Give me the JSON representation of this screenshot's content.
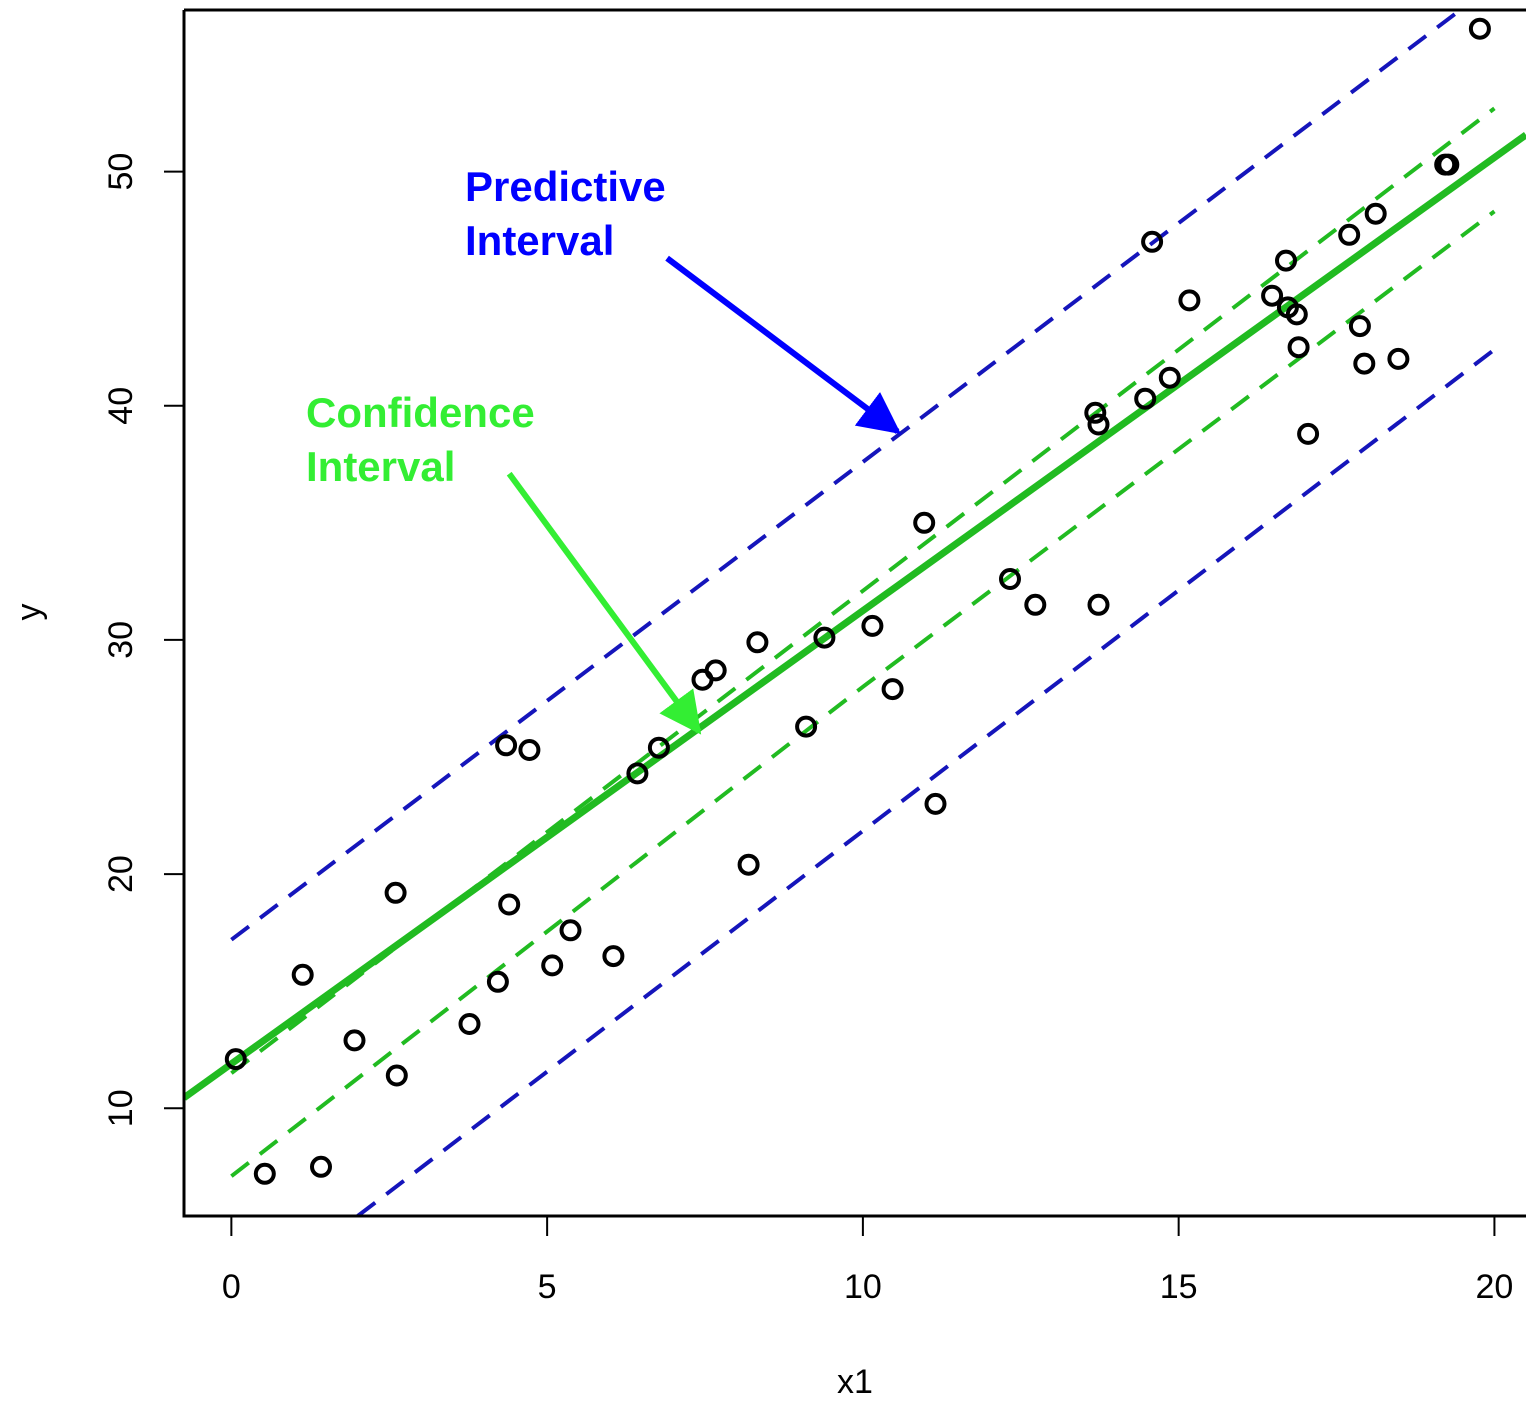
{
  "chart_data": {
    "type": "scatter",
    "title": "",
    "xlabel": "x1",
    "ylabel": "y",
    "xlim": [
      -0.75,
      20.5
    ],
    "ylim": [
      5.4,
      56.9
    ],
    "x_ticks": [
      0,
      5,
      10,
      15,
      20
    ],
    "y_ticks": [
      10,
      20,
      30,
      40,
      50
    ],
    "grid": false,
    "points": [
      [
        0.07,
        12.1
      ],
      [
        0.53,
        7.2
      ],
      [
        1.13,
        15.7
      ],
      [
        1.42,
        7.5
      ],
      [
        1.95,
        12.9
      ],
      [
        2.6,
        19.2
      ],
      [
        2.62,
        11.4
      ],
      [
        3.77,
        13.6
      ],
      [
        4.22,
        15.4
      ],
      [
        4.35,
        25.5
      ],
      [
        4.4,
        18.7
      ],
      [
        4.72,
        25.3
      ],
      [
        5.08,
        16.1
      ],
      [
        5.37,
        17.6
      ],
      [
        6.05,
        16.5
      ],
      [
        6.43,
        24.3
      ],
      [
        6.77,
        25.4
      ],
      [
        7.46,
        28.3
      ],
      [
        7.67,
        28.7
      ],
      [
        8.19,
        20.4
      ],
      [
        8.33,
        29.9
      ],
      [
        9.1,
        26.3
      ],
      [
        9.39,
        30.1
      ],
      [
        10.15,
        30.6
      ],
      [
        10.47,
        27.9
      ],
      [
        10.97,
        35.0
      ],
      [
        11.15,
        23.0
      ],
      [
        12.33,
        32.6
      ],
      [
        12.73,
        31.5
      ],
      [
        13.68,
        39.7
      ],
      [
        13.73,
        39.2
      ],
      [
        13.73,
        31.5
      ],
      [
        14.47,
        40.3
      ],
      [
        14.58,
        47.0
      ],
      [
        14.86,
        41.2
      ],
      [
        15.17,
        44.5
      ],
      [
        16.48,
        44.7
      ],
      [
        16.7,
        46.2
      ],
      [
        16.73,
        44.2
      ],
      [
        16.87,
        43.9
      ],
      [
        16.9,
        42.5
      ],
      [
        17.05,
        38.8
      ],
      [
        17.7,
        47.3
      ],
      [
        17.87,
        43.4
      ],
      [
        17.94,
        41.8
      ],
      [
        18.12,
        48.2
      ],
      [
        18.48,
        42.0
      ],
      [
        19.22,
        50.3
      ],
      [
        19.27,
        50.3
      ],
      [
        19.77,
        56.1
      ]
    ],
    "fit_line": {
      "intercept": 11.9,
      "slope": 1.935,
      "color": "#21bb21"
    },
    "confidence_interval": {
      "color": "#21bb21",
      "style": "dashed",
      "upper": [
        [
          0.0,
          11.5
        ],
        [
          10.0,
          32.1
        ],
        [
          20.0,
          52.7
        ]
      ],
      "lower": [
        [
          0.0,
          7.1
        ],
        [
          10.0,
          28.0
        ],
        [
          20.0,
          48.3
        ]
      ]
    },
    "predictive_interval": {
      "color": "#1515bb",
      "style": "dashed",
      "upper": [
        [
          0.0,
          17.2
        ],
        [
          20.0,
          58.0
        ]
      ],
      "lower": [
        [
          2.0,
          5.4
        ],
        [
          20.0,
          42.4
        ]
      ]
    },
    "annotations": [
      {
        "text_line1": "Predictive",
        "text_line2": "Interval",
        "color": "#0000ff",
        "arrow_from": [
          6.9,
          46.3
        ],
        "arrow_to": [
          10.55,
          38.9
        ]
      },
      {
        "text_line1": "Confidence",
        "text_line2": "Interval",
        "color": "#33ee33",
        "arrow_from": [
          4.4,
          37.1
        ],
        "arrow_to": [
          7.4,
          26.1
        ]
      }
    ]
  }
}
